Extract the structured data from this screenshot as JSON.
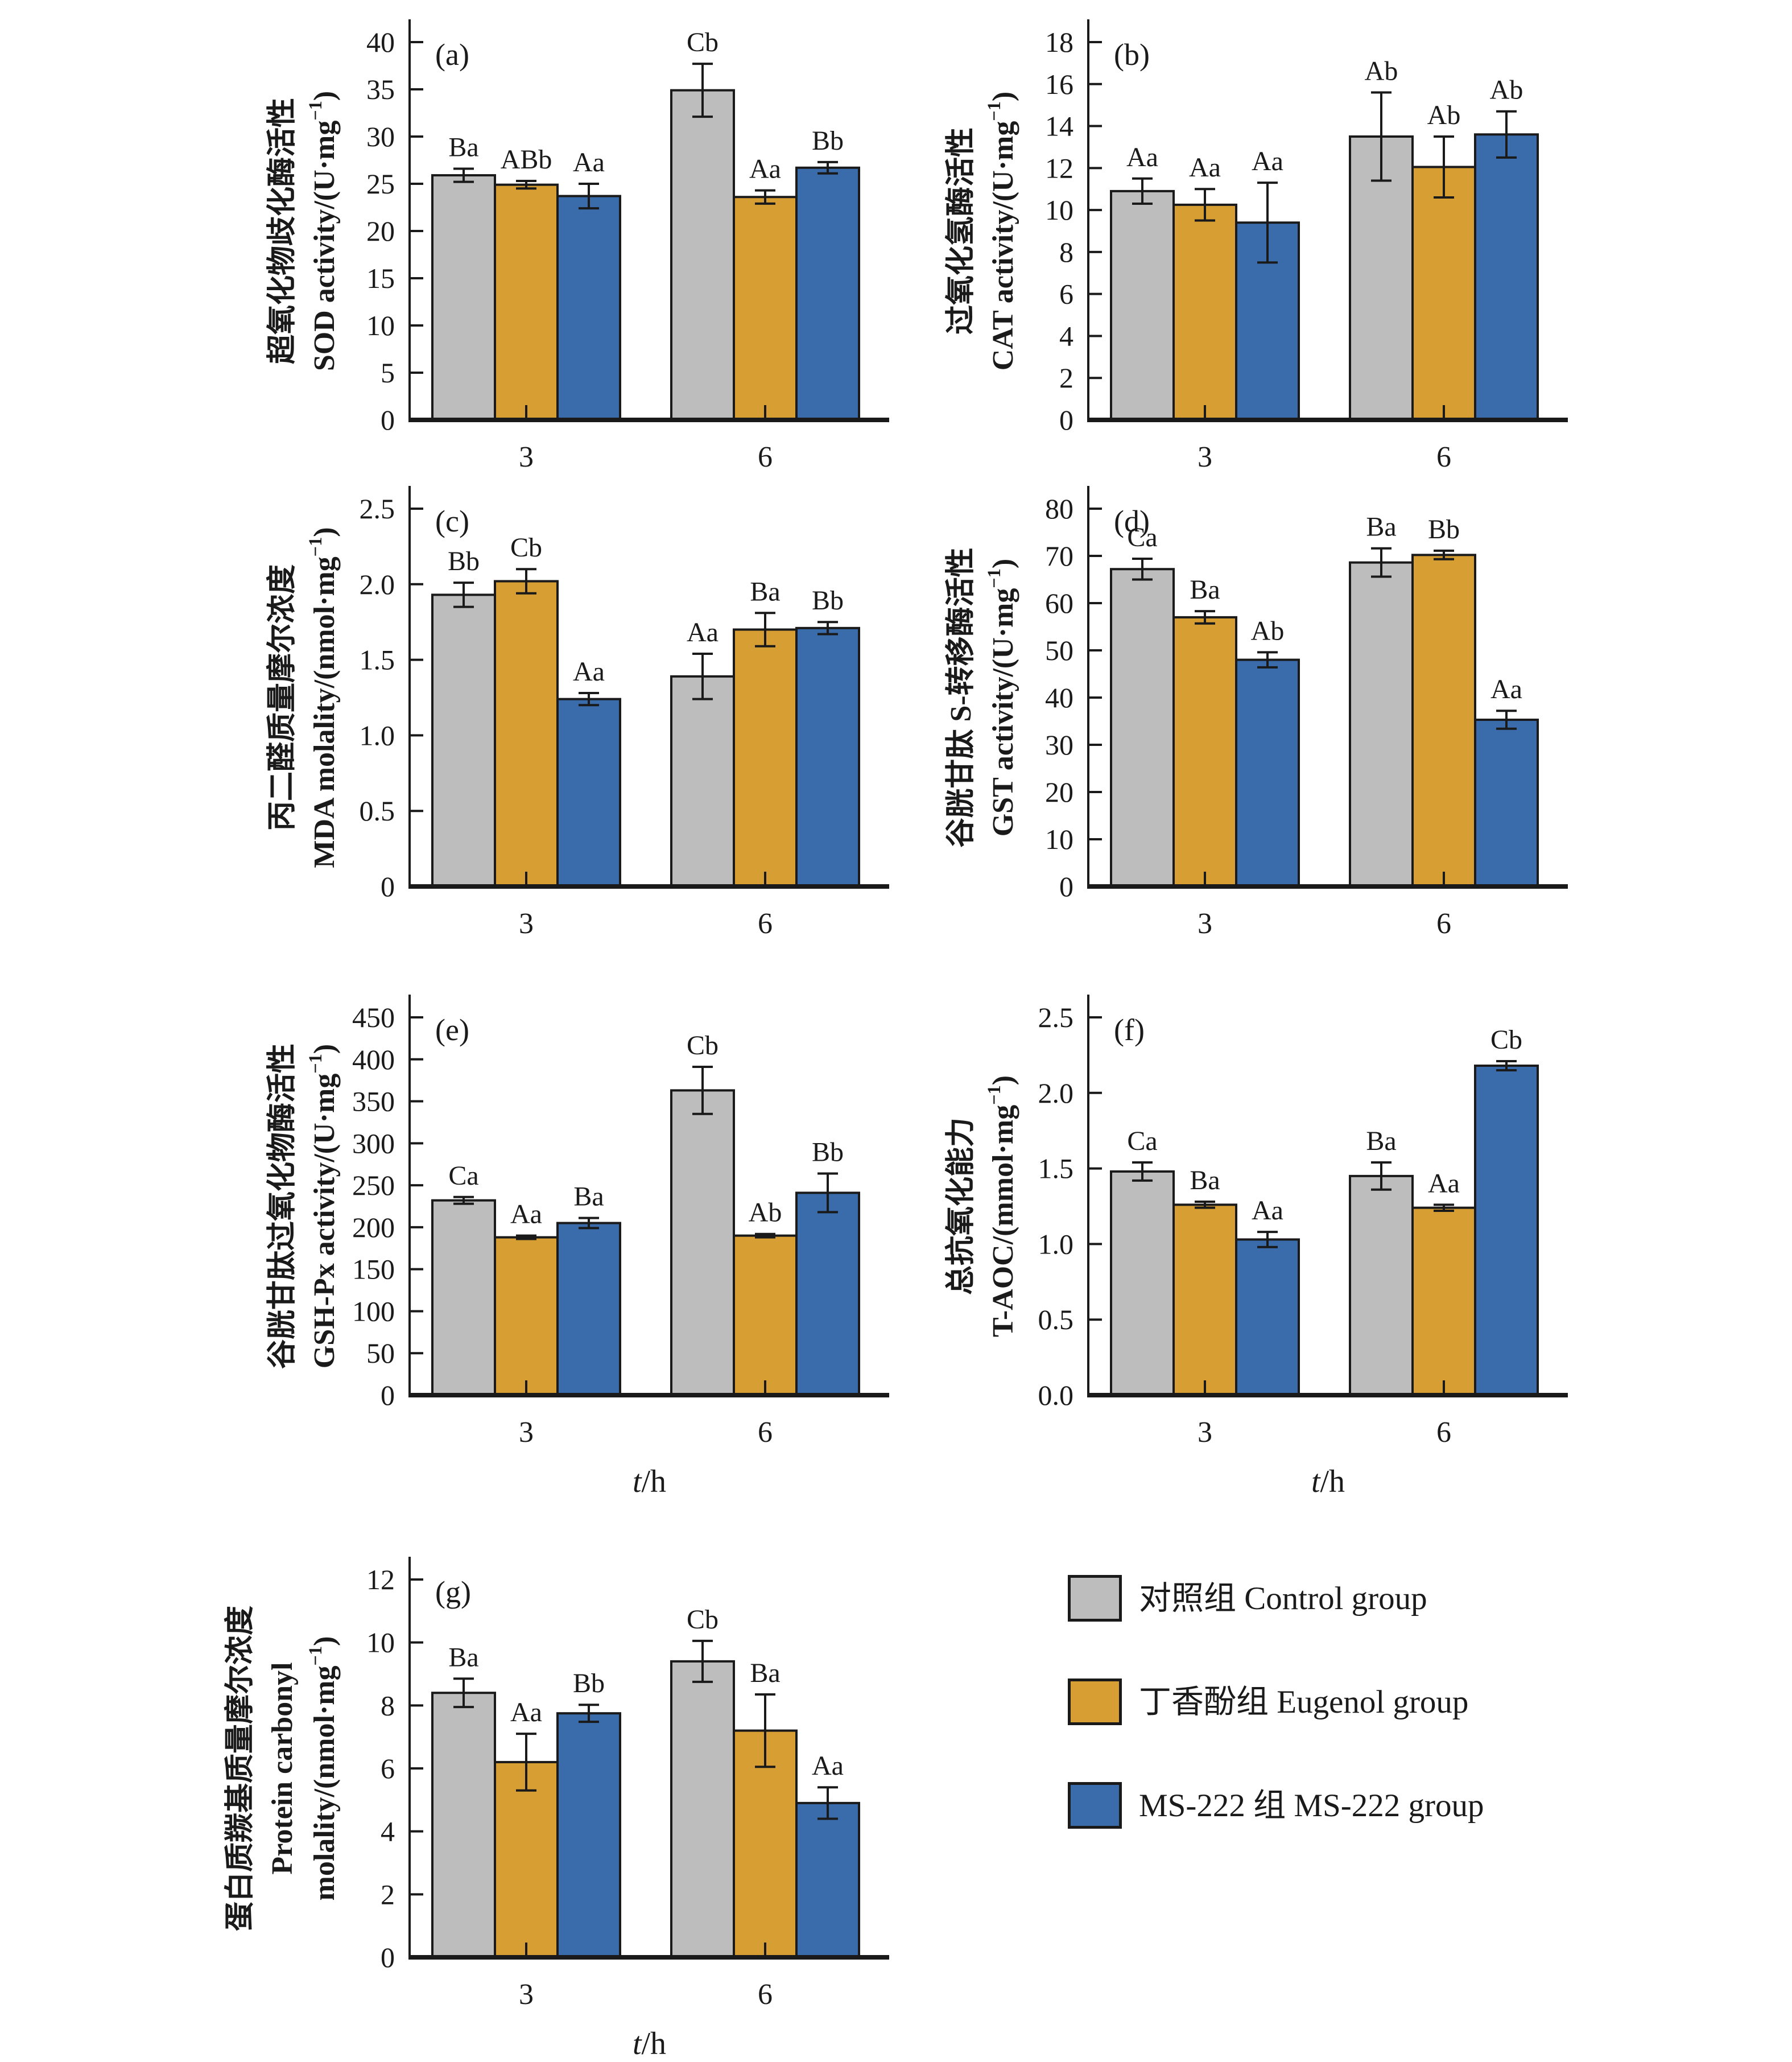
{
  "series_colors": [
    "#bdbdbd",
    "#d79e34",
    "#3a6cab"
  ],
  "ink_color": "#1a1a1a",
  "legend": {
    "position": "bottom-right",
    "items": [
      {
        "key": "control",
        "label": "对照组 Control group",
        "color": "#bdbdbd"
      },
      {
        "key": "eugenol",
        "label": "丁香酚组 Eugenol group",
        "color": "#d79e34"
      },
      {
        "key": "ms222",
        "label": "MS-222 组 MS-222 group",
        "color": "#3a6cab"
      }
    ]
  },
  "chart_data": [
    {
      "id": "a",
      "panel_label": "(a)",
      "type": "bar",
      "grid": false,
      "ylabel_lines": [
        "超氧化物歧化酶活性",
        "SOD activity/(U·mg⁻¹)"
      ],
      "xlabel": "",
      "categories": [
        "3",
        "6"
      ],
      "ylim": [
        0,
        40
      ],
      "ytick_values": [
        0,
        5,
        10,
        15,
        20,
        25,
        30,
        35,
        40
      ],
      "ytick_labels": [
        "0",
        "5",
        "10",
        "15",
        "20",
        "25",
        "30",
        "35",
        "40"
      ],
      "series": [
        {
          "key": "control",
          "name": "对照组 Control group",
          "values": [
            25.9,
            34.9
          ],
          "errors": [
            0.7,
            2.8
          ],
          "sig": [
            "Ba",
            "Cb"
          ]
        },
        {
          "key": "eugenol",
          "name": "丁香酚组 Eugenol group",
          "values": [
            24.9,
            23.6
          ],
          "errors": [
            0.4,
            0.7
          ],
          "sig": [
            "ABb",
            "Aa"
          ]
        },
        {
          "key": "ms222",
          "name": "MS-222 组 MS-222 group",
          "values": [
            23.7,
            26.7
          ],
          "errors": [
            1.3,
            0.6
          ],
          "sig": [
            "Aa",
            "Bb"
          ]
        }
      ]
    },
    {
      "id": "b",
      "panel_label": "(b)",
      "type": "bar",
      "grid": false,
      "ylabel_lines": [
        "过氧化氢酶活性",
        "CAT activity/(U·mg⁻¹)"
      ],
      "xlabel": "",
      "categories": [
        "3",
        "6"
      ],
      "ylim": [
        0,
        18
      ],
      "ytick_values": [
        0,
        2,
        4,
        6,
        8,
        10,
        12,
        14,
        16,
        18
      ],
      "ytick_labels": [
        "0",
        "2",
        "4",
        "6",
        "8",
        "10",
        "12",
        "14",
        "16",
        "18"
      ],
      "series": [
        {
          "key": "control",
          "name": "对照组 Control group",
          "values": [
            10.9,
            13.5
          ],
          "errors": [
            0.6,
            2.1
          ],
          "sig": [
            "Aa",
            "Ab"
          ]
        },
        {
          "key": "eugenol",
          "name": "丁香酚组 Eugenol group",
          "values": [
            10.25,
            12.05
          ],
          "errors": [
            0.75,
            1.45
          ],
          "sig": [
            "Aa",
            "Ab"
          ]
        },
        {
          "key": "ms222",
          "name": "MS-222 组 MS-222 group",
          "values": [
            9.4,
            13.6
          ],
          "errors": [
            1.9,
            1.1
          ],
          "sig": [
            "Aa",
            "Ab"
          ]
        }
      ]
    },
    {
      "id": "c",
      "panel_label": "(c)",
      "type": "bar",
      "grid": false,
      "ylabel_lines": [
        "丙二醛质量摩尔浓度",
        "MDA molality/(nmol·mg⁻¹)"
      ],
      "xlabel": "",
      "categories": [
        "3",
        "6"
      ],
      "ylim": [
        0,
        2.5
      ],
      "ytick_values": [
        0,
        0.5,
        1.0,
        1.5,
        2.0,
        2.5
      ],
      "ytick_labels": [
        "0",
        "0.5",
        "1.0",
        "1.5",
        "2.0",
        "2.5"
      ],
      "series": [
        {
          "key": "control",
          "name": "对照组 Control group",
          "values": [
            1.93,
            1.39
          ],
          "errors": [
            0.08,
            0.15
          ],
          "sig": [
            "Bb",
            "Aa"
          ]
        },
        {
          "key": "eugenol",
          "name": "丁香酚组 Eugenol group",
          "values": [
            2.02,
            1.7
          ],
          "errors": [
            0.08,
            0.11
          ],
          "sig": [
            "Cb",
            "Ba"
          ]
        },
        {
          "key": "ms222",
          "name": "MS-222 组 MS-222 group",
          "values": [
            1.24,
            1.71
          ],
          "errors": [
            0.04,
            0.04
          ],
          "sig": [
            "Aa",
            "Bb"
          ]
        }
      ]
    },
    {
      "id": "d",
      "panel_label": "(d)",
      "type": "bar",
      "grid": false,
      "ylabel_lines": [
        "谷胱甘肽 S-转移酶活性",
        "GST activity/(U·mg⁻¹)"
      ],
      "xlabel": "",
      "categories": [
        "3",
        "6"
      ],
      "ylim": [
        0,
        80
      ],
      "ytick_values": [
        0,
        10,
        20,
        30,
        40,
        50,
        60,
        70,
        80
      ],
      "ytick_labels": [
        "0",
        "10",
        "20",
        "30",
        "40",
        "50",
        "60",
        "70",
        "80"
      ],
      "series": [
        {
          "key": "control",
          "name": "对照组 Control group",
          "values": [
            67.2,
            68.6
          ],
          "errors": [
            2.2,
            3.0
          ],
          "sig": [
            "Ca",
            "Ba"
          ]
        },
        {
          "key": "eugenol",
          "name": "丁香酚组 Eugenol group",
          "values": [
            57.0,
            70.2
          ],
          "errors": [
            1.3,
            0.9
          ],
          "sig": [
            "Ba",
            "Bb"
          ]
        },
        {
          "key": "ms222",
          "name": "MS-222 组 MS-222 group",
          "values": [
            48.0,
            35.3
          ],
          "errors": [
            1.6,
            1.9
          ],
          "sig": [
            "Ab",
            "Aa"
          ]
        }
      ]
    },
    {
      "id": "e",
      "panel_label": "(e)",
      "type": "bar",
      "grid": false,
      "ylabel_lines": [
        "谷胱甘肽过氧化物酶活性",
        "GSH-Px activity/(U·mg⁻¹)"
      ],
      "xlabel": "t/h",
      "categories": [
        "3",
        "6"
      ],
      "ylim": [
        0,
        450
      ],
      "ytick_values": [
        0,
        50,
        100,
        150,
        200,
        250,
        300,
        350,
        400,
        450
      ],
      "ytick_labels": [
        "0",
        "50",
        "100",
        "150",
        "200",
        "250",
        "300",
        "350",
        "400",
        "450"
      ],
      "series": [
        {
          "key": "control",
          "name": "对照组 Control group",
          "values": [
            232,
            363
          ],
          "errors": [
            4,
            28
          ],
          "sig": [
            "Ca",
            "Cb"
          ]
        },
        {
          "key": "eugenol",
          "name": "丁香酚组 Eugenol group",
          "values": [
            188,
            190
          ],
          "errors": [
            2,
            2
          ],
          "sig": [
            "Aa",
            "Ab"
          ]
        },
        {
          "key": "ms222",
          "name": "MS-222 组 MS-222 group",
          "values": [
            205,
            241
          ],
          "errors": [
            6,
            23
          ],
          "sig": [
            "Ba",
            "Bb"
          ]
        }
      ]
    },
    {
      "id": "f",
      "panel_label": "(f)",
      "type": "bar",
      "grid": false,
      "ylabel_lines": [
        "总抗氧化能力",
        "T-AOC/(mmol·mg⁻¹)"
      ],
      "xlabel": "t/h",
      "categories": [
        "3",
        "6"
      ],
      "ylim": [
        0,
        2.5
      ],
      "ytick_values": [
        0,
        0.5,
        1.0,
        1.5,
        2.0,
        2.5
      ],
      "ytick_labels": [
        "0.0",
        "0.5",
        "1.0",
        "1.5",
        "2.0",
        "2.5"
      ],
      "series": [
        {
          "key": "control",
          "name": "对照组 Control group",
          "values": [
            1.48,
            1.45
          ],
          "errors": [
            0.06,
            0.09
          ],
          "sig": [
            "Ca",
            "Ba"
          ]
        },
        {
          "key": "eugenol",
          "name": "丁香酚组 Eugenol group",
          "values": [
            1.26,
            1.24
          ],
          "errors": [
            0.02,
            0.02
          ],
          "sig": [
            "Ba",
            "Aa"
          ]
        },
        {
          "key": "ms222",
          "name": "MS-222 组 MS-222 group",
          "values": [
            1.03,
            2.18
          ],
          "errors": [
            0.05,
            0.03
          ],
          "sig": [
            "Aa",
            "Cb"
          ]
        }
      ]
    },
    {
      "id": "g",
      "panel_label": "(g)",
      "type": "bar",
      "grid": false,
      "ylabel_lines": [
        "蛋白质羰基质量摩尔浓度",
        "Protein carbonyl",
        "molality/(nmol·mg⁻¹)"
      ],
      "xlabel": "t/h",
      "categories": [
        "3",
        "6"
      ],
      "ylim": [
        0,
        12
      ],
      "ytick_values": [
        0,
        2,
        4,
        6,
        8,
        10,
        12
      ],
      "ytick_labels": [
        "0",
        "2",
        "4",
        "6",
        "8",
        "10",
        "12"
      ],
      "series": [
        {
          "key": "control",
          "name": "对照组 Control group",
          "values": [
            8.4,
            9.4
          ],
          "errors": [
            0.45,
            0.65
          ],
          "sig": [
            "Ba",
            "Cb"
          ]
        },
        {
          "key": "eugenol",
          "name": "丁香酚组 Eugenol group",
          "values": [
            6.2,
            7.2
          ],
          "errors": [
            0.9,
            1.15
          ],
          "sig": [
            "Aa",
            "Ba"
          ]
        },
        {
          "key": "ms222",
          "name": "MS-222 组 MS-222 group",
          "values": [
            7.75,
            4.9
          ],
          "errors": [
            0.27,
            0.5
          ],
          "sig": [
            "Bb",
            "Aa"
          ]
        }
      ]
    }
  ]
}
